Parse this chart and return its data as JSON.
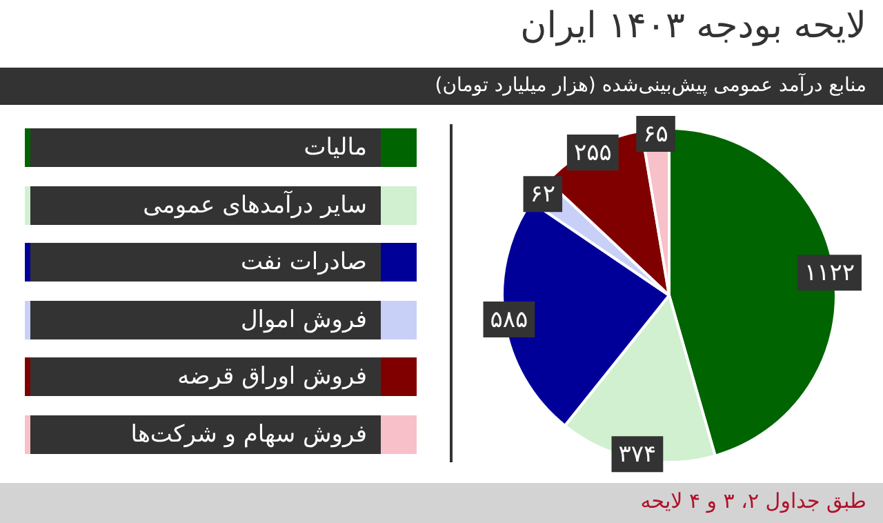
{
  "chart_data": {
    "type": "pie",
    "title": "لایحه بودجه ۱۴۰۳ ایران",
    "subtitle": "منابع درآمد عمومی پیش‌بینی‌شده (هزار میلیارد تومان)",
    "categories": [
      "مالیات",
      "سایر درآمدهای عمومی",
      "صادرات نفت",
      "فروش اموال",
      "فروش اوراق قرضه",
      "فروش سهام و شرکت‌ها"
    ],
    "values": [
      1122,
      374,
      585,
      62,
      255,
      65
    ],
    "value_labels": [
      "۱۱۲۲",
      "۳۷۴",
      "۵۸۵",
      "۶۲",
      "۲۵۵",
      "۶۵"
    ],
    "colors": [
      "#006400",
      "#d0f0d0",
      "#000099",
      "#c8d0f8",
      "#800000",
      "#f8c0c8"
    ],
    "legend": "left",
    "annotations": [
      "طبق جداول ۲، ۳ و ۴ لایحه"
    ]
  }
}
